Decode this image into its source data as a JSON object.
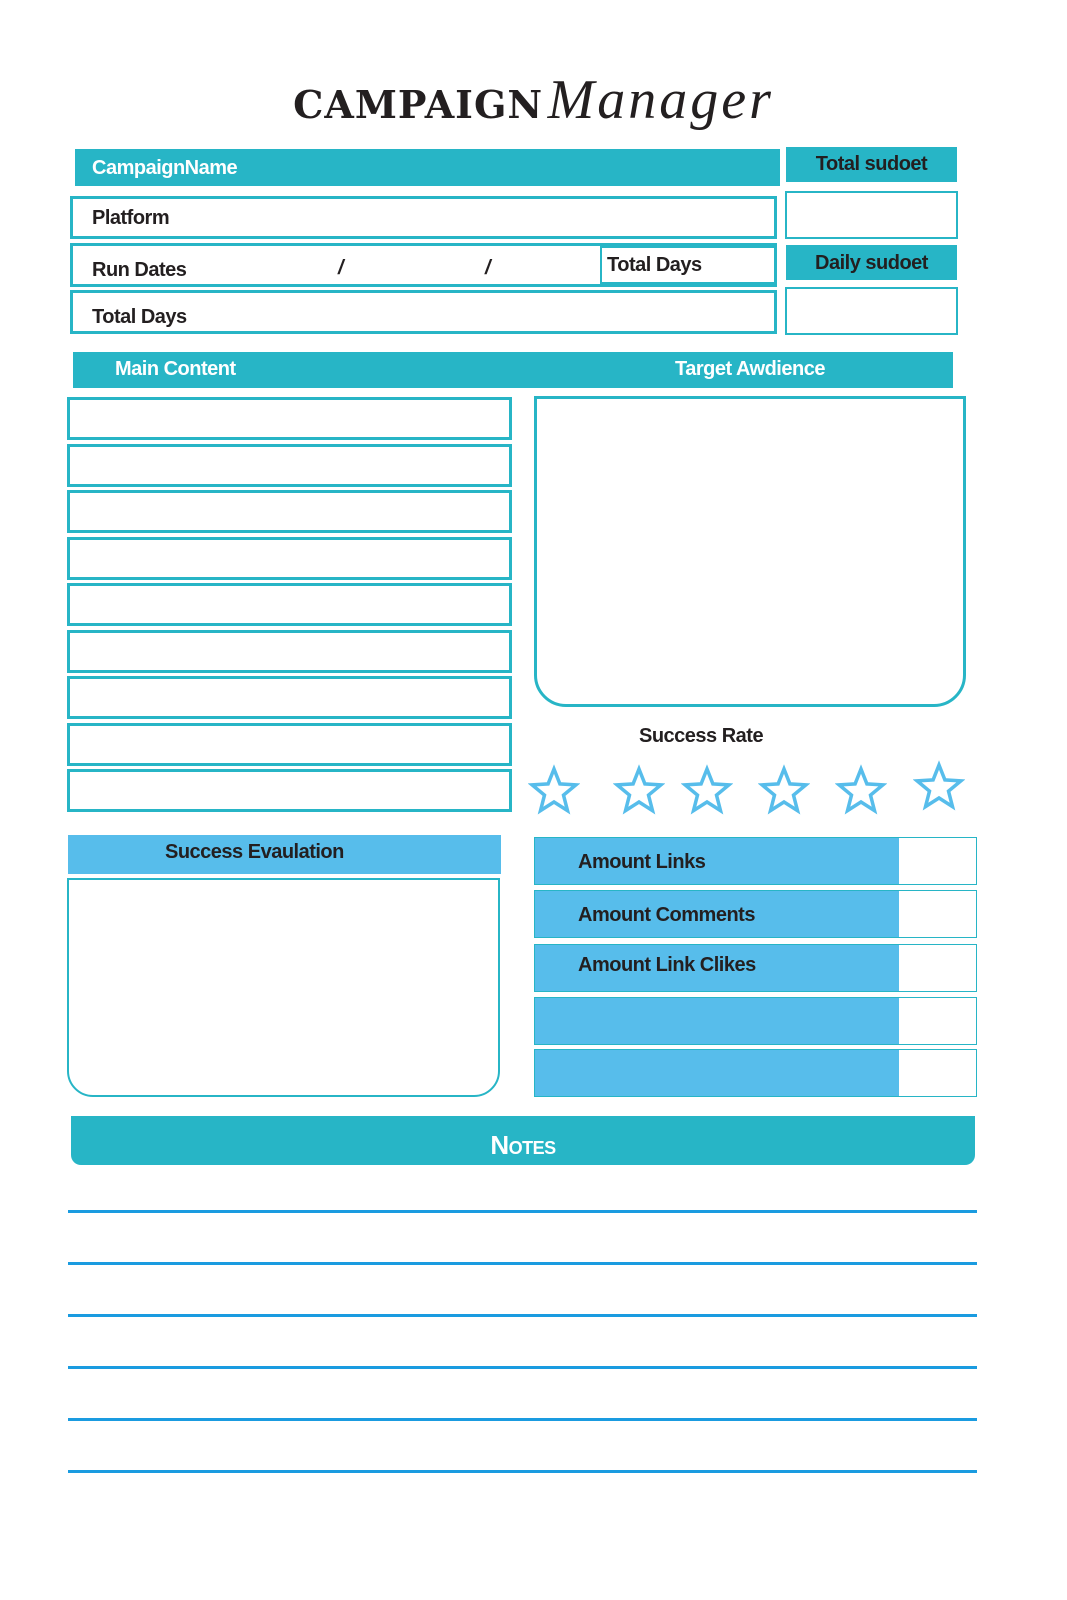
{
  "title": {
    "word1": "CAMPAIGN",
    "word2": "Manager"
  },
  "header": {
    "campaign_name": "CampaignName",
    "platform": "Platform",
    "run_dates": "Run Dates",
    "date_separator_1": "/",
    "date_separator_2": "/",
    "total_days_inline": "Total Days",
    "total_days": "Total Days",
    "total_budget": "Total sudoet",
    "daily_budget": "Daily sudoet"
  },
  "sections": {
    "main_content": "Main Content",
    "target_audience": "Target Awdience",
    "success_rate": "Success Rate",
    "success_evaluation": "Success Evaulation",
    "notes": "Notes"
  },
  "rating": {
    "stars_total": 6,
    "stars_filled": 0
  },
  "metrics": [
    {
      "label": "Amount Links"
    },
    {
      "label": "Amount Comments"
    },
    {
      "label": "Amount Link Clikes"
    },
    {
      "label": ""
    },
    {
      "label": ""
    }
  ],
  "colors": {
    "teal": "#27b5c6",
    "light_blue": "#57bdeb",
    "note_line": "#1a9be0",
    "text": "#231f20"
  }
}
